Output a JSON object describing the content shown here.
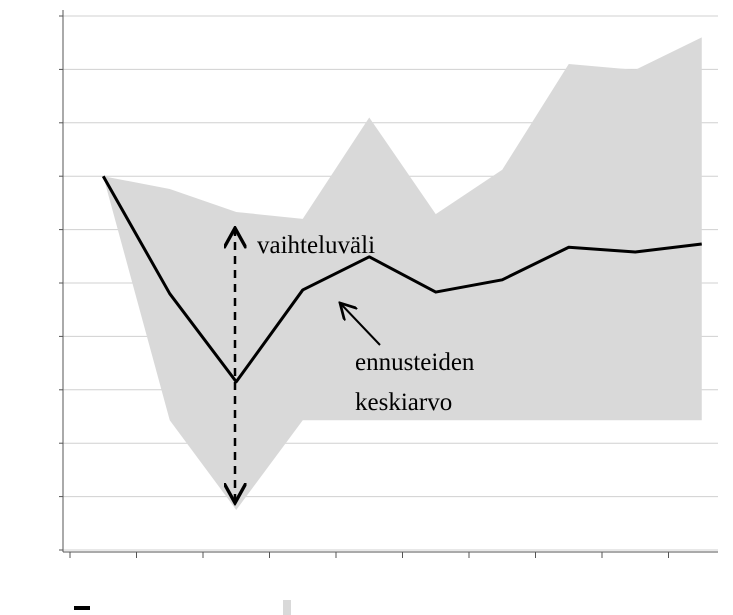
{
  "chart_data": {
    "type": "line",
    "categories": [
      null,
      null,
      null,
      null,
      null,
      null,
      null,
      null,
      null,
      null
    ],
    "series": [
      {
        "color": "#000000",
        "values": [
          7.0,
          4.8,
          3.15,
          4.87,
          5.49,
          4.83,
          5.06,
          5.67,
          5.58,
          5.73
        ]
      }
    ],
    "band": {
      "color": "#d9d9d9",
      "upper": [
        7.0,
        6.76,
        6.33,
        6.2,
        8.1,
        6.29,
        7.12,
        9.1,
        8.99,
        9.6
      ],
      "lower": [
        7.0,
        2.43,
        0.75,
        2.43,
        2.43,
        2.43,
        2.43,
        2.43,
        2.43,
        2.43
      ]
    },
    "ylim": [
      0,
      10
    ],
    "yticks": [
      0,
      1,
      2,
      3,
      4,
      5,
      6,
      7,
      8,
      9,
      10
    ],
    "grid": true,
    "annotations": [
      "vaihteluväli",
      "ennusteiden",
      "keskiarvo"
    ]
  }
}
